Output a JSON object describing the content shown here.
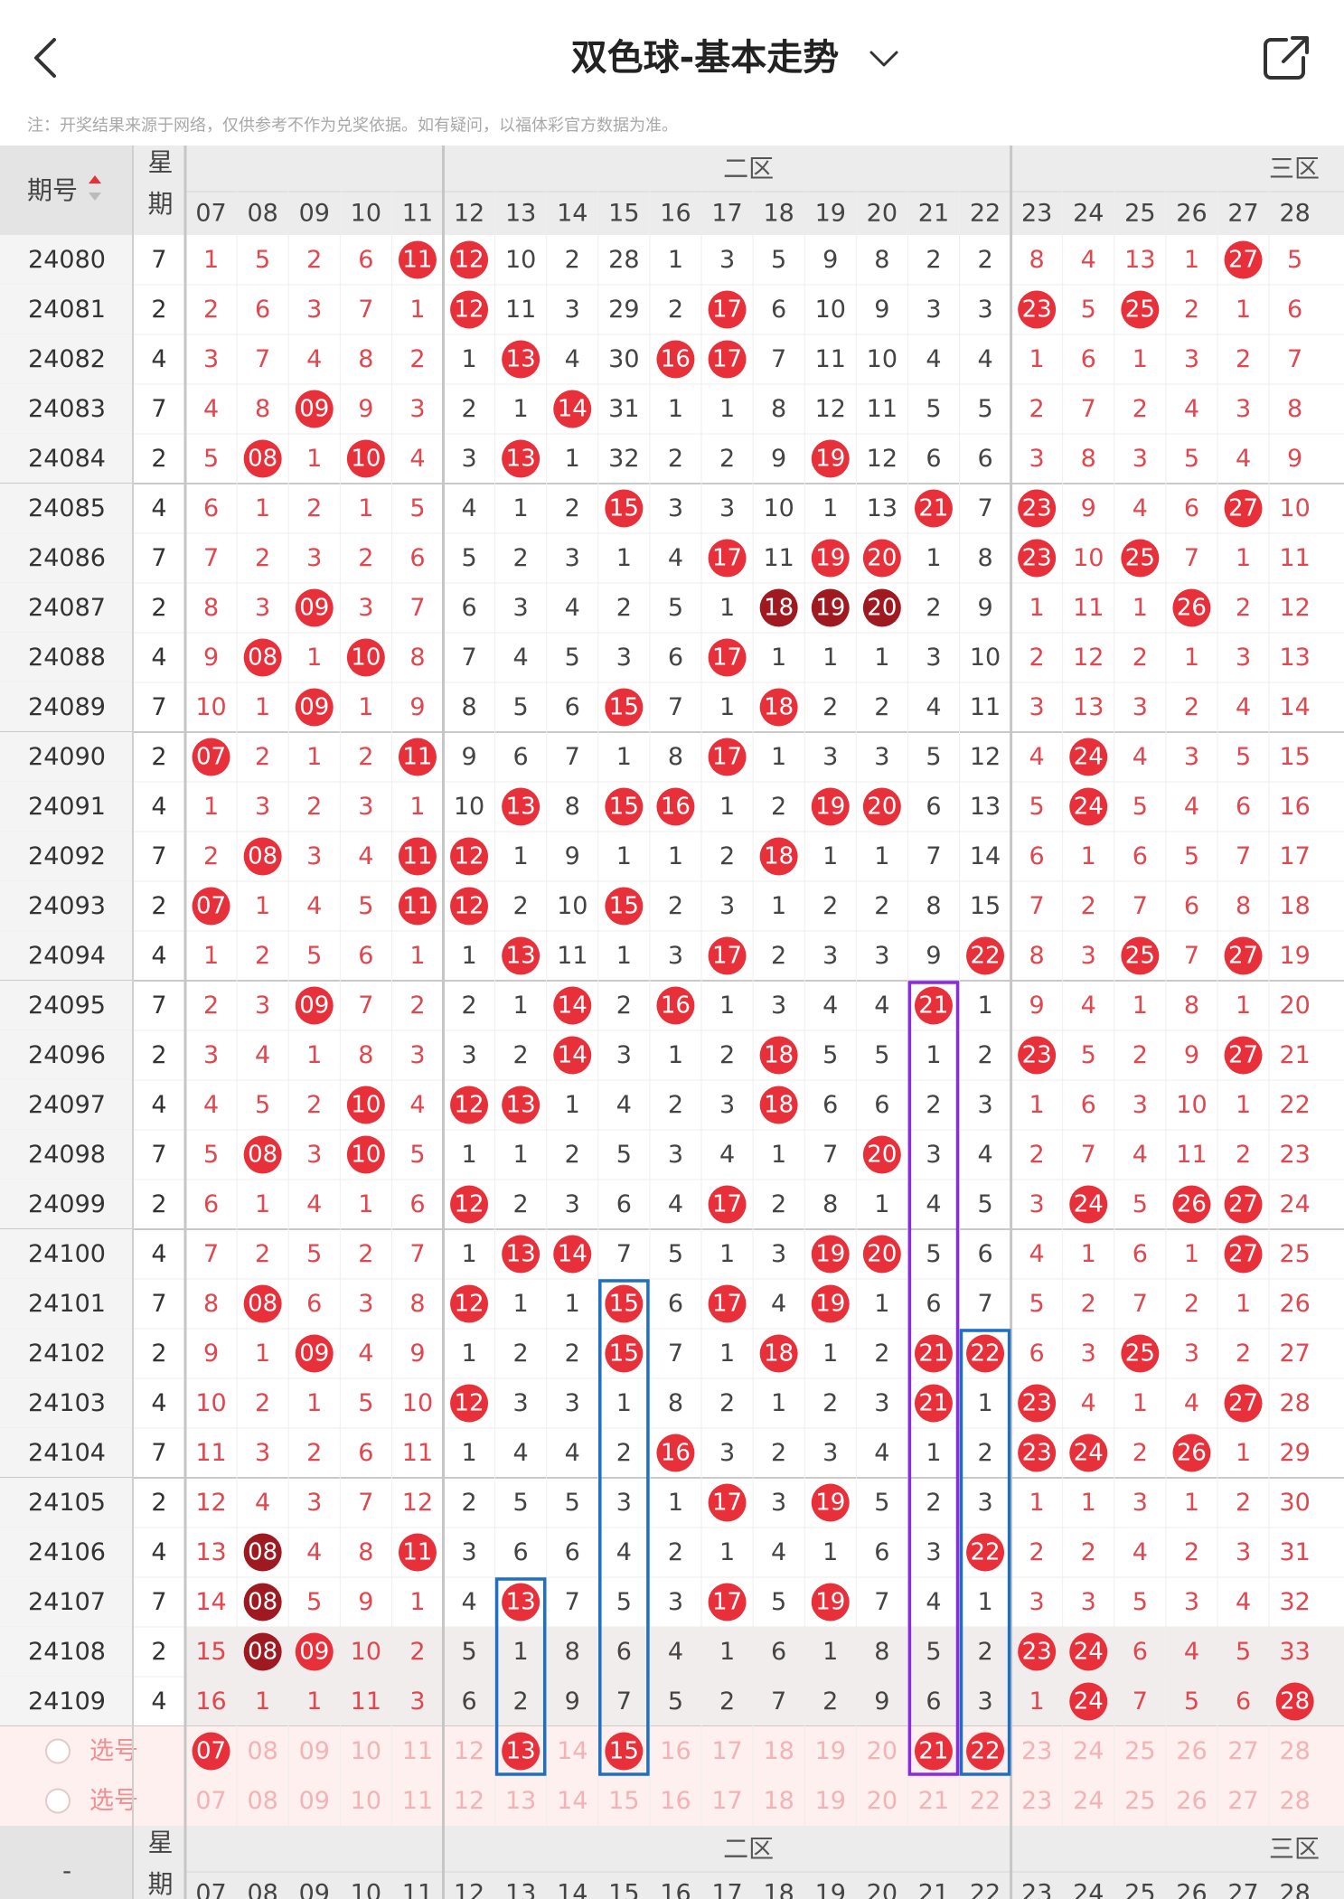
{
  "header": {
    "title": "双色球-基本走势"
  },
  "note": "注：开奖结果来源于网络，仅供参考不作为兑奖依据。如有疑问，以福体彩官方数据为准。",
  "table": {
    "period_header": "期号",
    "weekday_header": "星期",
    "zone_labels": [
      "二区",
      "三区"
    ],
    "columns": [
      "07",
      "08",
      "09",
      "10",
      "11",
      "12",
      "13",
      "14",
      "15",
      "16",
      "17",
      "18",
      "19",
      "20",
      "21",
      "22",
      "23",
      "24",
      "25",
      "26",
      "27",
      "28"
    ],
    "rows": [
      {
        "period": "24080",
        "weekday": "7",
        "cells": [
          "1",
          "5",
          "2",
          "6",
          {
            "ball": "11"
          },
          {
            "ball": "12"
          },
          "10",
          "2",
          "28",
          "1",
          "3",
          "5",
          "9",
          "8",
          "2",
          "2",
          "8",
          "4",
          "13",
          "1",
          {
            "ball": "27"
          },
          "5"
        ]
      },
      {
        "period": "24081",
        "weekday": "2",
        "cells": [
          "2",
          "6",
          "3",
          "7",
          "1",
          {
            "ball": "12"
          },
          "11",
          "3",
          "29",
          "2",
          {
            "ball": "17"
          },
          "6",
          "10",
          "9",
          "3",
          "3",
          {
            "ball": "23"
          },
          "5",
          {
            "ball": "25"
          },
          "2",
          "1",
          "6"
        ]
      },
      {
        "period": "24082",
        "weekday": "4",
        "cells": [
          "3",
          "7",
          "4",
          "8",
          "2",
          "1",
          {
            "ball": "13"
          },
          "4",
          "30",
          {
            "ball": "16"
          },
          {
            "ball": "17"
          },
          "7",
          "11",
          "10",
          "4",
          "4",
          "1",
          "6",
          "1",
          "3",
          "2",
          "7"
        ]
      },
      {
        "period": "24083",
        "weekday": "7",
        "cells": [
          "4",
          "8",
          {
            "ball": "09"
          },
          "9",
          "3",
          "2",
          "1",
          {
            "ball": "14"
          },
          "31",
          "1",
          "1",
          "8",
          "12",
          "11",
          "5",
          "5",
          "2",
          "7",
          "2",
          "4",
          "3",
          "8"
        ]
      },
      {
        "period": "24084",
        "weekday": "2",
        "cells": [
          "5",
          {
            "ball": "08"
          },
          "1",
          {
            "ball": "10"
          },
          "4",
          "3",
          {
            "ball": "13"
          },
          "1",
          "32",
          "2",
          "2",
          "9",
          {
            "ball": "19"
          },
          "12",
          "6",
          "6",
          "3",
          "8",
          "3",
          "5",
          "4",
          "9"
        ]
      },
      {
        "period": "24085",
        "weekday": "4",
        "cells": [
          "6",
          "1",
          "2",
          "1",
          "5",
          "4",
          "1",
          "2",
          {
            "ball": "15"
          },
          "3",
          "3",
          "10",
          "1",
          "13",
          {
            "ball": "21"
          },
          "7",
          {
            "ball": "23"
          },
          "9",
          "4",
          "6",
          {
            "ball": "27"
          },
          "10"
        ]
      },
      {
        "period": "24086",
        "weekday": "7",
        "cells": [
          "7",
          "2",
          "3",
          "2",
          "6",
          "5",
          "2",
          "3",
          "1",
          "4",
          {
            "ball": "17"
          },
          "11",
          {
            "ball": "19"
          },
          {
            "ball": "20"
          },
          "1",
          "8",
          {
            "ball": "23"
          },
          "10",
          {
            "ball": "25"
          },
          "7",
          "1",
          "11"
        ]
      },
      {
        "period": "24087",
        "weekday": "2",
        "cells": [
          "8",
          "3",
          {
            "ball": "09"
          },
          "3",
          "7",
          "6",
          "3",
          "4",
          "2",
          "5",
          "1",
          {
            "ball": "18",
            "dark": true
          },
          {
            "ball": "19",
            "dark": true
          },
          {
            "ball": "20",
            "dark": true
          },
          "2",
          "9",
          "1",
          "11",
          "1",
          {
            "ball": "26"
          },
          "2",
          "12"
        ]
      },
      {
        "period": "24088",
        "weekday": "4",
        "cells": [
          "9",
          {
            "ball": "08"
          },
          "1",
          {
            "ball": "10"
          },
          "8",
          "7",
          "4",
          "5",
          "3",
          "6",
          {
            "ball": "17"
          },
          "1",
          "1",
          "1",
          "3",
          "10",
          "2",
          "12",
          "2",
          "1",
          "3",
          "13"
        ]
      },
      {
        "period": "24089",
        "weekday": "7",
        "cells": [
          "10",
          "1",
          {
            "ball": "09"
          },
          "1",
          "9",
          "8",
          "5",
          "6",
          {
            "ball": "15"
          },
          "7",
          "1",
          {
            "ball": "18"
          },
          "2",
          "2",
          "4",
          "11",
          "3",
          "13",
          "3",
          "2",
          "4",
          "14"
        ]
      },
      {
        "period": "24090",
        "weekday": "2",
        "cells": [
          {
            "ball": "07"
          },
          "2",
          "1",
          "2",
          {
            "ball": "11"
          },
          "9",
          "6",
          "7",
          "1",
          "8",
          {
            "ball": "17"
          },
          "1",
          "3",
          "3",
          "5",
          "12",
          "4",
          {
            "ball": "24"
          },
          "4",
          "3",
          "5",
          "15"
        ]
      },
      {
        "period": "24091",
        "weekday": "4",
        "cells": [
          "1",
          "3",
          "2",
          "3",
          "1",
          "10",
          {
            "ball": "13"
          },
          "8",
          {
            "ball": "15"
          },
          {
            "ball": "16"
          },
          "1",
          "2",
          {
            "ball": "19"
          },
          {
            "ball": "20"
          },
          "6",
          "13",
          "5",
          {
            "ball": "24"
          },
          "5",
          "4",
          "6",
          "16"
        ]
      },
      {
        "period": "24092",
        "weekday": "7",
        "cells": [
          "2",
          {
            "ball": "08"
          },
          "3",
          "4",
          {
            "ball": "11"
          },
          {
            "ball": "12"
          },
          "1",
          "9",
          "1",
          "1",
          "2",
          {
            "ball": "18"
          },
          "1",
          "1",
          "7",
          "14",
          "6",
          "1",
          "6",
          "5",
          "7",
          "17"
        ]
      },
      {
        "period": "24093",
        "weekday": "2",
        "cells": [
          {
            "ball": "07"
          },
          "1",
          "4",
          "5",
          {
            "ball": "11"
          },
          {
            "ball": "12"
          },
          "2",
          "10",
          {
            "ball": "15"
          },
          "2",
          "3",
          "1",
          "2",
          "2",
          "8",
          "15",
          "7",
          "2",
          "7",
          "6",
          "8",
          "18"
        ]
      },
      {
        "period": "24094",
        "weekday": "4",
        "cells": [
          "1",
          "2",
          "5",
          "6",
          "1",
          "1",
          {
            "ball": "13"
          },
          "11",
          "1",
          "3",
          {
            "ball": "17"
          },
          "2",
          "3",
          "3",
          "9",
          {
            "ball": "22"
          },
          "8",
          "3",
          {
            "ball": "25"
          },
          "7",
          {
            "ball": "27"
          },
          "19"
        ]
      },
      {
        "period": "24095",
        "weekday": "7",
        "cells": [
          "2",
          "3",
          {
            "ball": "09"
          },
          "7",
          "2",
          "2",
          "1",
          {
            "ball": "14"
          },
          "2",
          {
            "ball": "16"
          },
          "1",
          "3",
          "4",
          "4",
          {
            "ball": "21"
          },
          "1",
          "9",
          "4",
          "1",
          "8",
          "1",
          "20"
        ]
      },
      {
        "period": "24096",
        "weekday": "2",
        "cells": [
          "3",
          "4",
          "1",
          "8",
          "3",
          "3",
          "2",
          {
            "ball": "14"
          },
          "3",
          "1",
          "2",
          {
            "ball": "18"
          },
          "5",
          "5",
          "1",
          "2",
          {
            "ball": "23"
          },
          "5",
          "2",
          "9",
          {
            "ball": "27"
          },
          "21"
        ]
      },
      {
        "period": "24097",
        "weekday": "4",
        "cells": [
          "4",
          "5",
          "2",
          {
            "ball": "10"
          },
          "4",
          {
            "ball": "12"
          },
          {
            "ball": "13"
          },
          "1",
          "4",
          "2",
          "3",
          {
            "ball": "18"
          },
          "6",
          "6",
          "2",
          "3",
          "1",
          "6",
          "3",
          "10",
          "1",
          "22"
        ]
      },
      {
        "period": "24098",
        "weekday": "7",
        "cells": [
          "5",
          {
            "ball": "08"
          },
          "3",
          {
            "ball": "10"
          },
          "5",
          "1",
          "1",
          "2",
          "5",
          "3",
          "4",
          "1",
          "7",
          {
            "ball": "20"
          },
          "3",
          "4",
          "2",
          "7",
          "4",
          "11",
          "2",
          "23"
        ]
      },
      {
        "period": "24099",
        "weekday": "2",
        "cells": [
          "6",
          "1",
          "4",
          "1",
          "6",
          {
            "ball": "12"
          },
          "2",
          "3",
          "6",
          "4",
          {
            "ball": "17"
          },
          "2",
          "8",
          "1",
          "4",
          "5",
          "3",
          {
            "ball": "24"
          },
          "5",
          {
            "ball": "26"
          },
          {
            "ball": "27"
          },
          "24"
        ]
      },
      {
        "period": "24100",
        "weekday": "4",
        "cells": [
          "7",
          "2",
          "5",
          "2",
          "7",
          "1",
          {
            "ball": "13"
          },
          {
            "ball": "14"
          },
          "7",
          "5",
          "1",
          "3",
          {
            "ball": "19"
          },
          {
            "ball": "20"
          },
          "5",
          "6",
          "4",
          "1",
          "6",
          "1",
          {
            "ball": "27"
          },
          "25"
        ]
      },
      {
        "period": "24101",
        "weekday": "7",
        "cells": [
          "8",
          {
            "ball": "08"
          },
          "6",
          "3",
          "8",
          {
            "ball": "12"
          },
          "1",
          "1",
          {
            "ball": "15"
          },
          "6",
          {
            "ball": "17"
          },
          "4",
          {
            "ball": "19"
          },
          "1",
          "6",
          "7",
          "5",
          "2",
          "7",
          "2",
          "1",
          "26"
        ]
      },
      {
        "period": "24102",
        "weekday": "2",
        "cells": [
          "9",
          "1",
          {
            "ball": "09"
          },
          "4",
          "9",
          "1",
          "2",
          "2",
          {
            "ball": "15"
          },
          "7",
          "1",
          {
            "ball": "18"
          },
          "1",
          "2",
          {
            "ball": "21"
          },
          {
            "ball": "22"
          },
          "6",
          "3",
          {
            "ball": "25"
          },
          "3",
          "2",
          "27"
        ]
      },
      {
        "period": "24103",
        "weekday": "4",
        "cells": [
          "10",
          "2",
          "1",
          "5",
          "10",
          {
            "ball": "12"
          },
          "3",
          "3",
          "1",
          "8",
          "2",
          "1",
          "2",
          "3",
          {
            "ball": "21"
          },
          "1",
          {
            "ball": "23"
          },
          "4",
          "1",
          "4",
          {
            "ball": "27"
          },
          "28"
        ]
      },
      {
        "period": "24104",
        "weekday": "7",
        "cells": [
          "11",
          "3",
          "2",
          "6",
          "11",
          "1",
          "4",
          "4",
          "2",
          {
            "ball": "16"
          },
          "3",
          "2",
          "3",
          "4",
          "1",
          "2",
          {
            "ball": "23"
          },
          {
            "ball": "24"
          },
          "2",
          {
            "ball": "26"
          },
          "1",
          "29"
        ]
      },
      {
        "period": "24105",
        "weekday": "2",
        "cells": [
          "12",
          "4",
          "3",
          "7",
          "12",
          "2",
          "5",
          "5",
          "3",
          "1",
          {
            "ball": "17"
          },
          "3",
          {
            "ball": "19"
          },
          "5",
          "2",
          "3",
          "1",
          "1",
          "3",
          "1",
          "2",
          "30"
        ]
      },
      {
        "period": "24106",
        "weekday": "4",
        "cells": [
          "13",
          {
            "ball": "08",
            "dark": true
          },
          "4",
          "8",
          {
            "ball": "11"
          },
          "3",
          "6",
          "6",
          "4",
          "2",
          "1",
          "4",
          "1",
          "6",
          "3",
          {
            "ball": "22"
          },
          "2",
          "2",
          "4",
          "2",
          "3",
          "31"
        ]
      },
      {
        "period": "24107",
        "weekday": "7",
        "cells": [
          "14",
          {
            "ball": "08",
            "dark": true
          },
          "5",
          "9",
          "1",
          "4",
          {
            "ball": "13"
          },
          "7",
          "5",
          "3",
          {
            "ball": "17"
          },
          "5",
          {
            "ball": "19"
          },
          "7",
          "4",
          "1",
          "3",
          "3",
          "5",
          "3",
          "4",
          "32"
        ]
      },
      {
        "period": "24108",
        "weekday": "2",
        "cells": [
          "15",
          {
            "ball": "08",
            "dark": true
          },
          {
            "ball": "09"
          },
          "10",
          "2",
          "5",
          "1",
          "8",
          "6",
          "4",
          "1",
          "6",
          "1",
          "8",
          "5",
          "2",
          {
            "ball": "23"
          },
          {
            "ball": "24"
          },
          "6",
          "4",
          "5",
          "33"
        ]
      },
      {
        "period": "24109",
        "weekday": "4",
        "cells": [
          "16",
          "1",
          "1",
          "11",
          "3",
          "6",
          "2",
          "9",
          "7",
          "5",
          "2",
          "7",
          "2",
          "9",
          "6",
          "3",
          "1",
          {
            "ball": "24"
          },
          "7",
          "5",
          "6",
          {
            "ball": "28"
          }
        ]
      }
    ],
    "pick_rows": [
      {
        "label": "选号",
        "cells": [
          {
            "ball": "07"
          },
          "08",
          "09",
          "10",
          "11",
          "12",
          {
            "ball": "13"
          },
          "14",
          {
            "ball": "15"
          },
          "16",
          "17",
          "18",
          "19",
          "20",
          {
            "ball": "21"
          },
          {
            "ball": "22"
          },
          "23",
          "24",
          "25",
          "26",
          "27",
          "28"
        ]
      },
      {
        "label": "选号",
        "cells": [
          "07",
          "08",
          "09",
          "10",
          "11",
          "12",
          "13",
          "14",
          "15",
          "16",
          "17",
          "18",
          "19",
          "20",
          "21",
          "22",
          "23",
          "24",
          "25",
          "26",
          "27",
          "28"
        ]
      }
    ],
    "footer_period_header": "-"
  }
}
